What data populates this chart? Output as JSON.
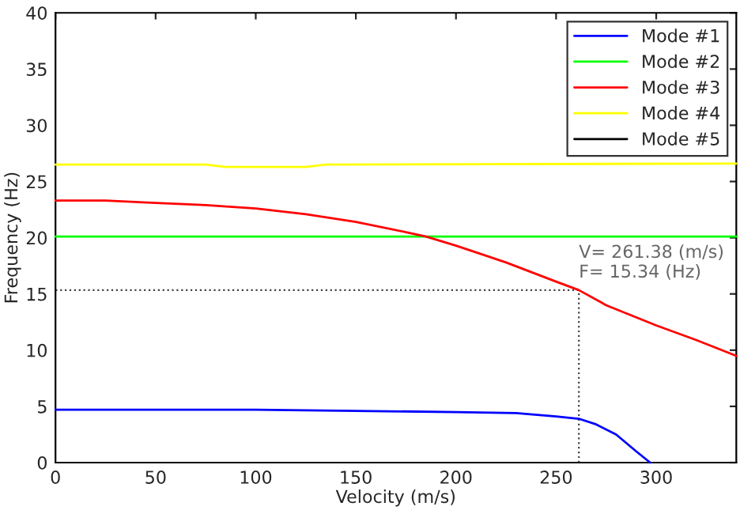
{
  "chart_data": {
    "type": "line",
    "xlabel": "Velocity (m/s)",
    "ylabel": "Frequency (Hz)",
    "xlim": [
      0,
      340
    ],
    "ylim": [
      0,
      40
    ],
    "xticks": [
      0,
      50,
      100,
      150,
      200,
      250,
      300
    ],
    "yticks": [
      0,
      5,
      10,
      15,
      20,
      25,
      30,
      35,
      40
    ],
    "grid": false,
    "legend": "top right",
    "line_style": "solid",
    "series": [
      {
        "name": "Mode #1",
        "color": "#0000ff",
        "x": [
          0,
          50,
          100,
          150,
          200,
          230,
          250,
          261.38,
          270,
          280,
          290,
          297
        ],
        "values": [
          4.7,
          4.7,
          4.7,
          4.6,
          4.5,
          4.4,
          4.1,
          3.9,
          3.4,
          2.5,
          1.0,
          0
        ]
      },
      {
        "name": "Mode #2",
        "color": "#00ff00",
        "x": [
          0,
          340
        ],
        "values": [
          20.1,
          20.1
        ]
      },
      {
        "name": "Mode #3",
        "color": "#ff0000",
        "x": [
          0,
          25,
          50,
          75,
          100,
          125,
          150,
          175,
          185,
          200,
          225,
          250,
          261.38,
          275,
          300,
          320,
          340
        ],
        "values": [
          23.3,
          23.3,
          23.1,
          22.9,
          22.6,
          22.1,
          21.4,
          20.5,
          20.1,
          19.3,
          17.8,
          16.1,
          15.34,
          14.0,
          12.2,
          10.9,
          9.5
        ]
      },
      {
        "name": "Mode #4",
        "color": "#ffff00",
        "x": [
          0,
          75,
          85,
          125,
          135,
          340
        ],
        "values": [
          26.5,
          26.5,
          26.3,
          26.3,
          26.5,
          26.6
        ]
      },
      {
        "name": "Mode #5",
        "color": "#000000"
      }
    ],
    "annotations": [
      {
        "text": "V= 261.38 (m/s)\nF= 15.34 (Hz)",
        "x": 261.38,
        "y": 15.34
      }
    ]
  }
}
